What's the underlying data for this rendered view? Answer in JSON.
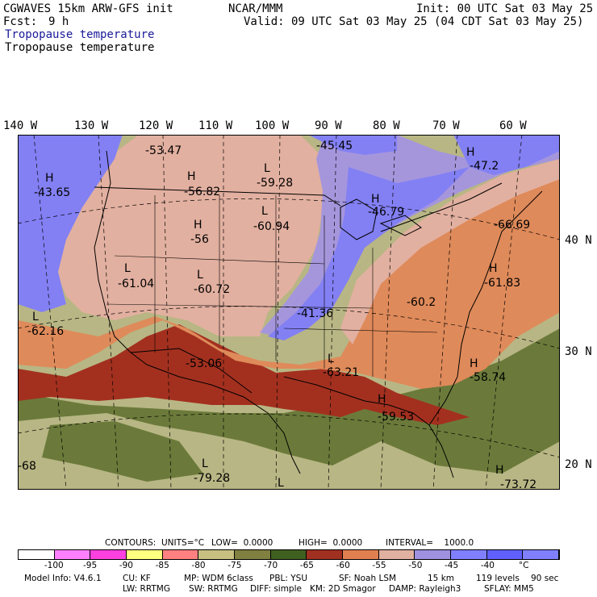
{
  "header": {
    "model": "CGWAVES 15km ARW-GFS init",
    "org": "NCAR/MMM",
    "init": "Init: 00 UTC Sat 03 May 25",
    "fcst_label": "Fcst:",
    "fcst_value": "9 h",
    "valid": "Valid: 09 UTC Sat 03 May 25 (04 CDT Sat 03 May 25)",
    "field_title_1": "Tropopause temperature",
    "field_title_2": "Tropopause temperature"
  },
  "longitudes": [
    "140 W",
    "130 W",
    "120 W",
    "110 W",
    "100 W",
    "90 W",
    "80 W",
    "70 W",
    "60 W"
  ],
  "latitudes": [
    "40 N",
    "30 N",
    "20 N"
  ],
  "map_labels": [
    {
      "type": "H",
      "value": "-43.65"
    },
    {
      "type": "",
      "value": "-53.47"
    },
    {
      "type": "H",
      "value": "-56.82"
    },
    {
      "type": "L",
      "value": "-59.28"
    },
    {
      "type": "",
      "value": "-45.45"
    },
    {
      "type": "H",
      "value": "-47.2"
    },
    {
      "type": "H",
      "value": "-46.79"
    },
    {
      "type": "L",
      "value": "-60.94"
    },
    {
      "type": "H",
      "value": "-56"
    },
    {
      "type": "",
      "value": "-66.69"
    },
    {
      "type": "L",
      "value": "-61.04"
    },
    {
      "type": "L",
      "value": "-60.72"
    },
    {
      "type": "H",
      "value": "-61.83"
    },
    {
      "type": "",
      "value": "-41.36"
    },
    {
      "type": "",
      "value": "-60.2"
    },
    {
      "type": "L",
      "value": "-62.16"
    },
    {
      "type": "",
      "value": "-53.06"
    },
    {
      "type": "L",
      "value": "-63.21"
    },
    {
      "type": "H",
      "value": "-58.74"
    },
    {
      "type": "H",
      "value": "-59.53"
    },
    {
      "type": "",
      "value": "-68"
    },
    {
      "type": "L",
      "value": "-79.28"
    },
    {
      "type": "L",
      "value": ""
    },
    {
      "type": "H",
      "value": "-73.72"
    }
  ],
  "contour_info": {
    "contours": "CONTOURS:",
    "units": "UNITS=°C",
    "low": "LOW=  0.0000",
    "high": "HIGH=  0.0000",
    "interval": "INTERVAL=    1000.0"
  },
  "colorbar": {
    "colors": [
      "#ffffff",
      "#ff80ff",
      "#ff40e0",
      "#ffff80",
      "#ff8080",
      "#c8c080",
      "#808040",
      "#406020",
      "#a03020",
      "#e08050",
      "#e0b0a0",
      "#a090e0",
      "#8080ff",
      "#6060ff",
      "#8080ff"
    ],
    "labels": [
      "-100",
      "-95",
      "-90",
      "-85",
      "-80",
      "-75",
      "-70",
      "-65",
      "-60",
      "-55",
      "-50",
      "-45",
      "-40",
      "°C"
    ]
  },
  "footer": {
    "line1": [
      "Model Info: V4.6.1",
      "CU: KF",
      "MP: WDM 6class",
      "PBL: YSU",
      "SF: Noah LSM",
      "15 km",
      "119 levels",
      "90 sec"
    ],
    "line2": [
      "LW: RRTMG",
      "SW: RRTMG",
      "DIFF: simple",
      "KM: 2D Smagor",
      "DAMP: Rayleigh3",
      "SFLAY: MM5"
    ]
  },
  "palette": {
    "green_dark": "#6b7a3a",
    "green_light": "#b8b684",
    "red": "#a3301f",
    "orange": "#df8a5a",
    "salmon": "#e2b0a0",
    "lavender": "#a596dc",
    "blue": "#8380f4"
  }
}
